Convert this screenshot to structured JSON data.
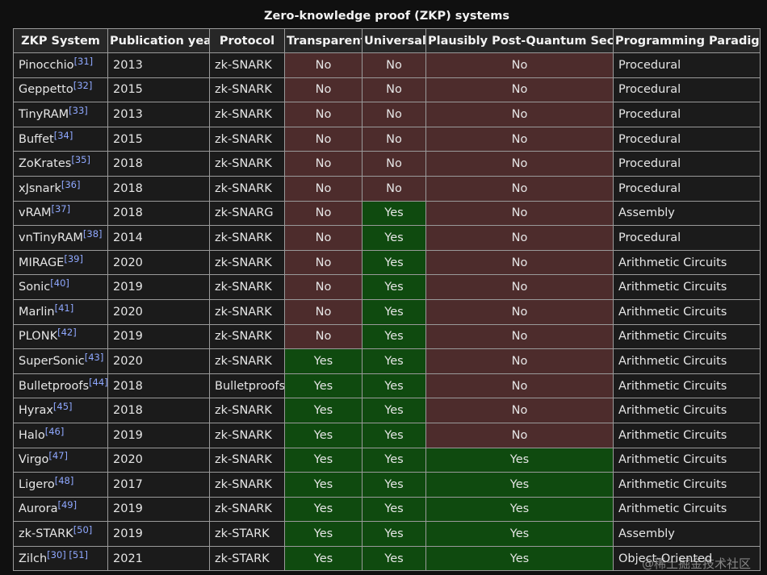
{
  "caption": "Zero-knowledge proof (ZKP) systems",
  "colors": {
    "no": "#4d2c2c",
    "yes": "#0f4a0f",
    "ref_link": "#8fa8ff"
  },
  "columns": [
    "ZKP System",
    "Publication year",
    "Protocol",
    "Transparent",
    "Universal",
    "Plausibly Post-Quantum Secure",
    "Programming Paradigm"
  ],
  "rows": [
    {
      "system": "Pinocchio",
      "ref": "[31]",
      "year": "2013",
      "protocol": "zk-SNARK",
      "transparent": "No",
      "universal": "No",
      "pq": "No",
      "paradigm": "Procedural"
    },
    {
      "system": "Geppetto",
      "ref": "[32]",
      "year": "2015",
      "protocol": "zk-SNARK",
      "transparent": "No",
      "universal": "No",
      "pq": "No",
      "paradigm": "Procedural"
    },
    {
      "system": "TinyRAM",
      "ref": "[33]",
      "year": "2013",
      "protocol": "zk-SNARK",
      "transparent": "No",
      "universal": "No",
      "pq": "No",
      "paradigm": "Procedural"
    },
    {
      "system": "Buffet",
      "ref": "[34]",
      "year": "2015",
      "protocol": "zk-SNARK",
      "transparent": "No",
      "universal": "No",
      "pq": "No",
      "paradigm": "Procedural"
    },
    {
      "system": "ZoKrates",
      "ref": "[35]",
      "year": "2018",
      "protocol": "zk-SNARK",
      "transparent": "No",
      "universal": "No",
      "pq": "No",
      "paradigm": "Procedural"
    },
    {
      "system": "xJsnark",
      "ref": "[36]",
      "year": "2018",
      "protocol": "zk-SNARK",
      "transparent": "No",
      "universal": "No",
      "pq": "No",
      "paradigm": "Procedural"
    },
    {
      "system": "vRAM",
      "ref": "[37]",
      "year": "2018",
      "protocol": "zk-SNARG",
      "transparent": "No",
      "universal": "Yes",
      "pq": "No",
      "paradigm": "Assembly"
    },
    {
      "system": "vnTinyRAM",
      "ref": "[38]",
      "year": "2014",
      "protocol": "zk-SNARK",
      "transparent": "No",
      "universal": "Yes",
      "pq": "No",
      "paradigm": "Procedural"
    },
    {
      "system": "MIRAGE",
      "ref": "[39]",
      "year": "2020",
      "protocol": "zk-SNARK",
      "transparent": "No",
      "universal": "Yes",
      "pq": "No",
      "paradigm": "Arithmetic Circuits"
    },
    {
      "system": "Sonic",
      "ref": "[40]",
      "year": "2019",
      "protocol": "zk-SNARK",
      "transparent": "No",
      "universal": "Yes",
      "pq": "No",
      "paradigm": "Arithmetic Circuits"
    },
    {
      "system": "Marlin",
      "ref": "[41]",
      "year": "2020",
      "protocol": "zk-SNARK",
      "transparent": "No",
      "universal": "Yes",
      "pq": "No",
      "paradigm": "Arithmetic Circuits"
    },
    {
      "system": "PLONK",
      "ref": "[42]",
      "year": "2019",
      "protocol": "zk-SNARK",
      "transparent": "No",
      "universal": "Yes",
      "pq": "No",
      "paradigm": "Arithmetic Circuits"
    },
    {
      "system": "SuperSonic",
      "ref": "[43]",
      "year": "2020",
      "protocol": "zk-SNARK",
      "transparent": "Yes",
      "universal": "Yes",
      "pq": "No",
      "paradigm": "Arithmetic Circuits"
    },
    {
      "system": "Bulletproofs",
      "ref": "[44]",
      "year": "2018",
      "protocol": "Bulletproofs",
      "transparent": "Yes",
      "universal": "Yes",
      "pq": "No",
      "paradigm": "Arithmetic Circuits"
    },
    {
      "system": "Hyrax",
      "ref": "[45]",
      "year": "2018",
      "protocol": "zk-SNARK",
      "transparent": "Yes",
      "universal": "Yes",
      "pq": "No",
      "paradigm": "Arithmetic Circuits"
    },
    {
      "system": "Halo",
      "ref": "[46]",
      "year": "2019",
      "protocol": "zk-SNARK",
      "transparent": "Yes",
      "universal": "Yes",
      "pq": "No",
      "paradigm": "Arithmetic Circuits"
    },
    {
      "system": "Virgo",
      "ref": "[47]",
      "year": "2020",
      "protocol": "zk-SNARK",
      "transparent": "Yes",
      "universal": "Yes",
      "pq": "Yes",
      "paradigm": "Arithmetic Circuits"
    },
    {
      "system": "Ligero",
      "ref": "[48]",
      "year": "2017",
      "protocol": "zk-SNARK",
      "transparent": "Yes",
      "universal": "Yes",
      "pq": "Yes",
      "paradigm": "Arithmetic Circuits"
    },
    {
      "system": "Aurora",
      "ref": "[49]",
      "year": "2019",
      "protocol": "zk-SNARK",
      "transparent": "Yes",
      "universal": "Yes",
      "pq": "Yes",
      "paradigm": "Arithmetic Circuits"
    },
    {
      "system": "zk-STARK",
      "ref": "[50]",
      "year": "2019",
      "protocol": "zk-STARK",
      "transparent": "Yes",
      "universal": "Yes",
      "pq": "Yes",
      "paradigm": "Assembly"
    },
    {
      "system": "Zilch",
      "ref": "[30] [51]",
      "year": "2021",
      "protocol": "zk-STARK",
      "transparent": "Yes",
      "universal": "Yes",
      "pq": "Yes",
      "paradigm": "Object-Oriented"
    }
  ],
  "watermark": "@稀土掘金技术社区"
}
